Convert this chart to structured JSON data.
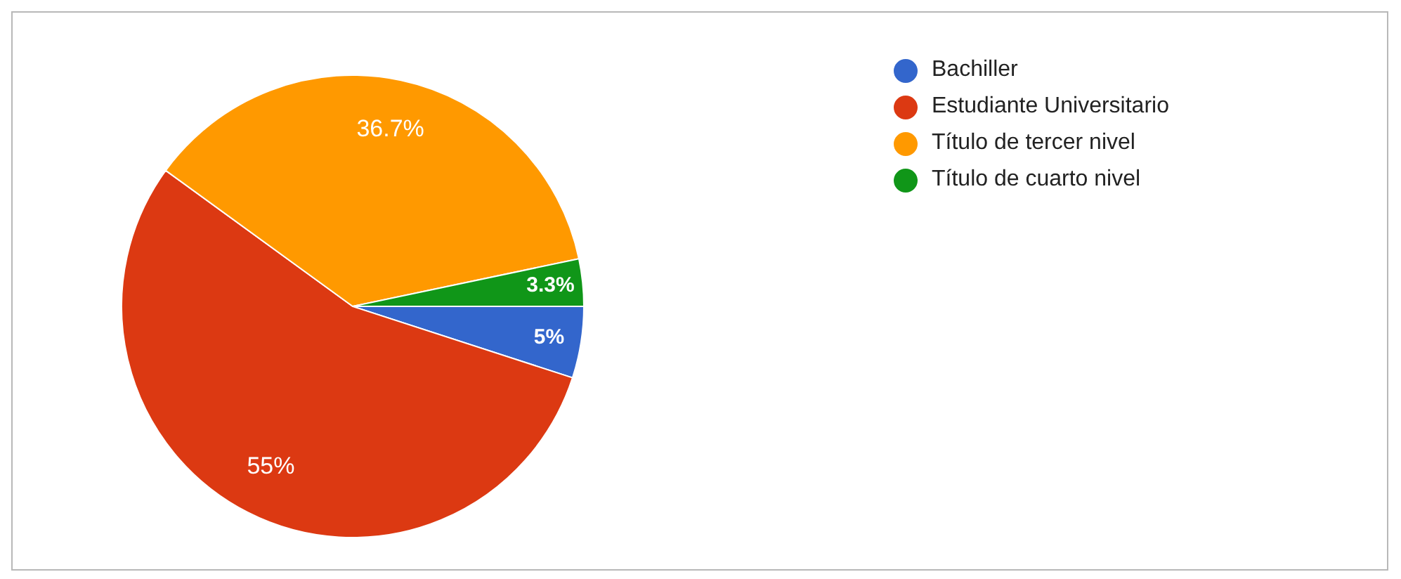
{
  "chart_data": {
    "type": "pie",
    "categories": [
      "Bachiller",
      "Estudiante Universitario",
      "Título de tercer nivel",
      "Título de cuarto nivel"
    ],
    "values": [
      5,
      55,
      36.7,
      3.3
    ],
    "colors": [
      "#3366cc",
      "#dc3912",
      "#ff9900",
      "#109618"
    ],
    "value_labels": [
      "5%",
      "55%",
      "36.7%",
      "3.3%"
    ],
    "legend": "top right"
  }
}
